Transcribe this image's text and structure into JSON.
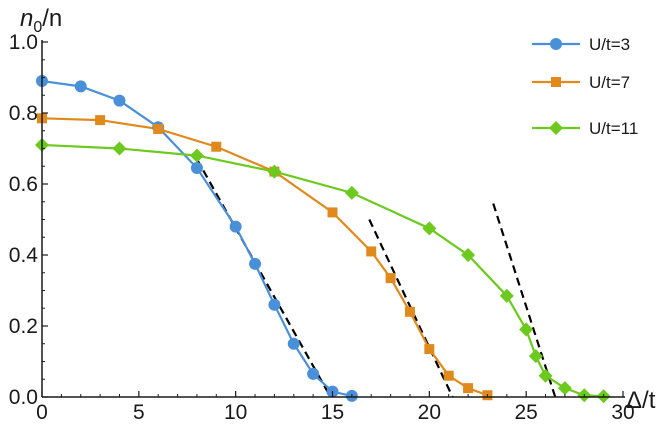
{
  "chart_data": {
    "type": "line",
    "xlabel": "Δ/t",
    "ylabel_main": "n",
    "ylabel_sub": "0",
    "ylabel_tail": "/n",
    "xlim": [
      0,
      30
    ],
    "ylim": [
      0,
      1.0
    ],
    "xticks": [
      0,
      5,
      10,
      15,
      20,
      25,
      30
    ],
    "xtick_labels": [
      "0",
      "5",
      "10",
      "15",
      "20",
      "25",
      "30"
    ],
    "yticks": [
      0.0,
      0.2,
      0.4,
      0.6,
      0.8,
      1.0
    ],
    "ytick_labels": [
      "0.0",
      "0.2",
      "0.4",
      "0.6",
      "0.8",
      "1.0"
    ],
    "grid": false,
    "legend_position": "top-right",
    "series": [
      {
        "name": "U/t=3",
        "color": "#4a90d9",
        "marker": "circle",
        "x": [
          0,
          2,
          4,
          6,
          8,
          10,
          11,
          12,
          13,
          14,
          15,
          16
        ],
        "y": [
          0.89,
          0.875,
          0.835,
          0.76,
          0.645,
          0.48,
          0.375,
          0.26,
          0.15,
          0.065,
          0.015,
          0.003
        ]
      },
      {
        "name": "U/t=7",
        "color": "#e08a1e",
        "marker": "square",
        "x": [
          0,
          3,
          6,
          9,
          12,
          15,
          17,
          18,
          19,
          20,
          21,
          22,
          23
        ],
        "y": [
          0.785,
          0.78,
          0.755,
          0.705,
          0.635,
          0.52,
          0.41,
          0.335,
          0.24,
          0.135,
          0.06,
          0.025,
          0.005
        ]
      },
      {
        "name": "U/t=11",
        "color": "#6cc91e",
        "marker": "diamond",
        "x": [
          0,
          4,
          8,
          12,
          16,
          20,
          22,
          24,
          25,
          25.5,
          26,
          27,
          28,
          29
        ],
        "y": [
          0.71,
          0.7,
          0.68,
          0.635,
          0.575,
          0.475,
          0.4,
          0.285,
          0.19,
          0.115,
          0.06,
          0.025,
          0.005,
          0.002
        ]
      }
    ],
    "fit_lines": [
      {
        "x": [
          8,
          14.9
        ],
        "y": [
          0.67,
          0.0
        ]
      },
      {
        "x": [
          16.9,
          21.2
        ],
        "y": [
          0.5,
          0.0
        ]
      },
      {
        "x": [
          23.3,
          26.5
        ],
        "y": [
          0.545,
          0.0
        ]
      }
    ]
  }
}
